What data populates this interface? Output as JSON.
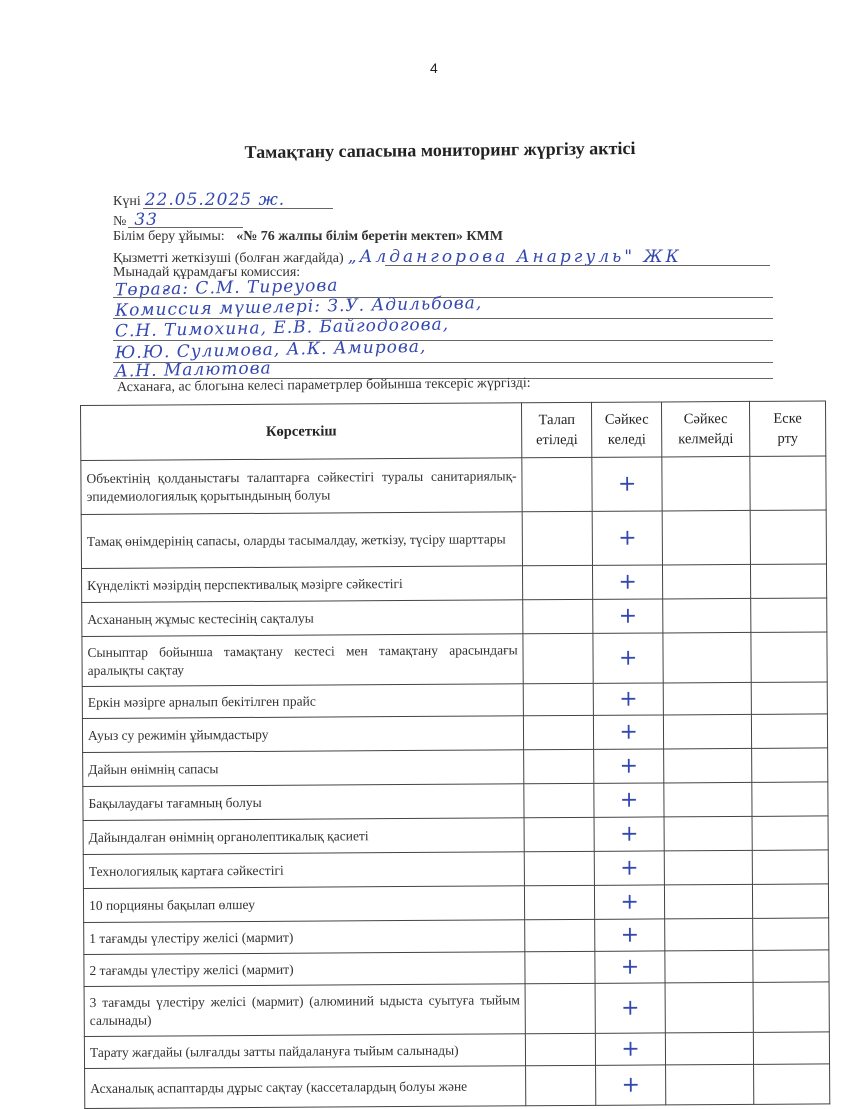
{
  "page_number": "4",
  "title": "Тамақтану сапасына мониторинг жүргізу актісі",
  "form": {
    "date_label": "Күні",
    "date_value": "22.05.2025 ж.",
    "number_label": "№",
    "number_value": "33",
    "org_label": "Білім беру ұйымы:",
    "org_value": "«№ 76 жалпы білім беретін мектеп» КММ",
    "supplier_label": "Қызметті жеткізуші (болған жағдайда)",
    "supplier_value": "„Алдангорова Анаргуль\" ЖК",
    "commission_label": "Мынадай құрамдағы комиссия:",
    "commission_lines": [
      "Төраға: С.М. Тиреуова",
      "Комиссия мүшелері: З.У. Адильбова,",
      "С.Н. Тимохина, Е.В. Байгодогова,",
      "Ю.Ю. Сулимова, А.К. Амирова,",
      "А.Н. Малютова"
    ],
    "inspection_intro": "Асханаға, ас блогына келесі параметрлер бойынша тексеріс жүргізді:"
  },
  "table": {
    "headers": [
      "Көрсеткіш",
      "Талап етіледі",
      "Сәйкес келеді",
      "Сәйкес келмейді",
      "Ескерту"
    ],
    "header_lines": [
      [
        "Көрсеткіш"
      ],
      [
        "Талап",
        "етіледі"
      ],
      [
        "Сәйкес",
        "келеді"
      ],
      [
        "Сәйкес",
        "келмейді"
      ],
      [
        "Еске",
        "рту"
      ]
    ],
    "rows": [
      {
        "indicator": "Объектінің қолданыстағы талаптарға сәйкестігі туралы санитариялық-эпидемиологиялық қорытындының болуы",
        "required": "",
        "compliant": "+",
        "non_compliant": "",
        "note": ""
      },
      {
        "indicator": "Тамақ өнімдерінің сапасы, оларды тасымалдау, жеткізу, түсіру шарттары",
        "required": "",
        "compliant": "+",
        "non_compliant": "",
        "note": ""
      },
      {
        "indicator": "Күнделікті мәзірдің перспективалық мәзірге сәйкестігі",
        "required": "",
        "compliant": "+",
        "non_compliant": "",
        "note": ""
      },
      {
        "indicator": "Асхананың жұмыс кестесінің сақталуы",
        "required": "",
        "compliant": "+",
        "non_compliant": "",
        "note": ""
      },
      {
        "indicator": "Сыныптар бойынша тамақтану кестесі мен тамақтану арасындағы аралықты сақтау",
        "required": "",
        "compliant": "+",
        "non_compliant": "",
        "note": ""
      },
      {
        "indicator": "Еркін мәзірге арналып бекітілген прайс",
        "required": "",
        "compliant": "+",
        "non_compliant": "",
        "note": ""
      },
      {
        "indicator": "Ауыз су режимін ұйымдастыру",
        "required": "",
        "compliant": "+",
        "non_compliant": "",
        "note": ""
      },
      {
        "indicator": "Дайын өнімнің сапасы",
        "required": "",
        "compliant": "+",
        "non_compliant": "",
        "note": ""
      },
      {
        "indicator": "Бақылаудағы тағамның болуы",
        "required": "",
        "compliant": "+",
        "non_compliant": "",
        "note": ""
      },
      {
        "indicator": "Дайындалған өнімнің органолептикалық қасиеті",
        "required": "",
        "compliant": "+",
        "non_compliant": "",
        "note": ""
      },
      {
        "indicator": "Технологиялық картаға сәйкестігі",
        "required": "",
        "compliant": "+",
        "non_compliant": "",
        "note": ""
      },
      {
        "indicator": "10 порцияны бақылап өлшеу",
        "required": "",
        "compliant": "+",
        "non_compliant": "",
        "note": ""
      },
      {
        "indicator": "1 тағамды үлестіру желісі  (мармит)",
        "required": "",
        "compliant": "+",
        "non_compliant": "",
        "note": ""
      },
      {
        "indicator": "2 тағамды үлестіру желісі  (мармит)",
        "required": "",
        "compliant": "+",
        "non_compliant": "",
        "note": ""
      },
      {
        "indicator": "3 тағамды үлестіру желісі  (мармит) (алюминий ыдыста суытуға тыйым салынады)",
        "required": "",
        "compliant": "+",
        "non_compliant": "",
        "note": ""
      },
      {
        "indicator": "Тарату жағдайы (ылғалды затты пайдалануға тыйым салынады)",
        "required": "",
        "compliant": "+",
        "non_compliant": "",
        "note": ""
      },
      {
        "indicator": "Асханалық аспаптарды дұрыс сақтау (кассеталардың болуы және",
        "required": "",
        "compliant": "+",
        "non_compliant": "",
        "note": ""
      }
    ]
  },
  "colors": {
    "ink": "#3348b0",
    "print": "#222222"
  }
}
